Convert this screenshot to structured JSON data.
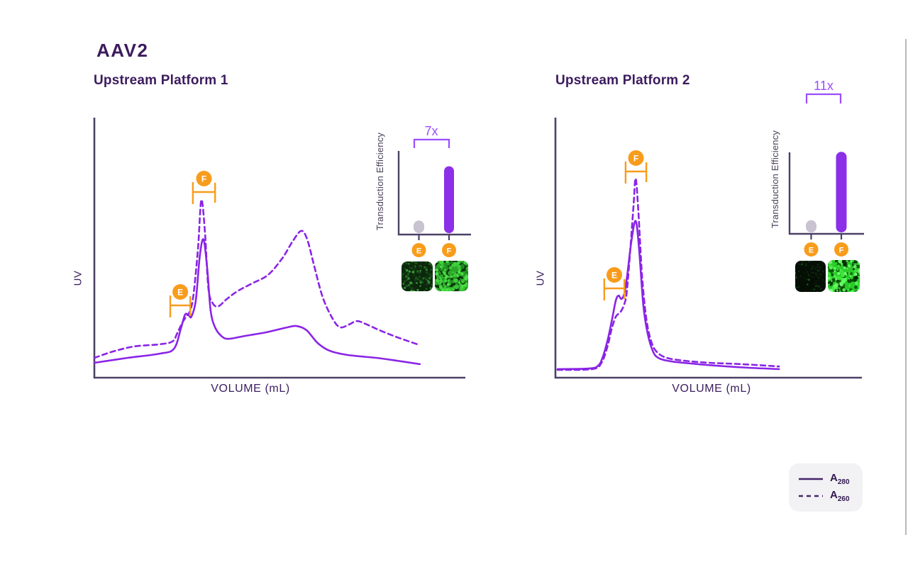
{
  "figure": {
    "title": "AAV2",
    "legend": [
      {
        "line_style": "solid",
        "symbol": "A",
        "subscript": "280"
      },
      {
        "line_style": "dashed",
        "symbol": "A",
        "subscript": "260"
      }
    ],
    "colors": {
      "accent_purple": "#8a24e6",
      "bar_purple": "#8b2fe8",
      "fold_purple": "#9b4dff",
      "marker_orange": "#f89c1c",
      "bar_gray": "#c9c2d0",
      "axis": "#4c4166",
      "heading_text": "#3c1b5e"
    }
  },
  "panels": [
    {
      "subtitle": "Upstream Platform 1",
      "xlabel": "VOLUME (mL)",
      "ylabel": "UV",
      "inset": {
        "ylabel": "Transduction Efficiency",
        "fold_change": "7x",
        "bars": [
          {
            "label": "E",
            "height_frac": 0.15,
            "color": "#c9c2d0"
          },
          {
            "label": "F",
            "height_frac": 0.8,
            "color": "#8b2fe8"
          }
        ]
      },
      "micrographs": [
        {
          "label": "E",
          "appearance": "sparse_dim_green"
        },
        {
          "label": "F",
          "appearance": "dense_bright_green"
        }
      ]
    },
    {
      "subtitle": "Upstream Platform 2",
      "xlabel": "VOLUME (mL)",
      "ylabel": "UV",
      "inset": {
        "ylabel": "Transduction Efficiency",
        "fold_change": "11x",
        "bars": [
          {
            "label": "E",
            "height_frac": 0.15,
            "color": "#c9c2d0"
          },
          {
            "label": "F",
            "height_frac": 0.99,
            "color": "#8b2fe8"
          }
        ]
      },
      "micrographs": [
        {
          "label": "E",
          "appearance": "very_sparse_dark"
        },
        {
          "label": "F",
          "appearance": "saturated_bright"
        }
      ]
    }
  ],
  "chart_data": [
    {
      "type": "line",
      "title": "Upstream Platform 1",
      "xlabel": "VOLUME (mL)",
      "ylabel": "UV",
      "axis_numeric_labels": false,
      "note": "qualitative chromatogram, x and y normalized 0-1",
      "series": [
        {
          "name": "A280",
          "style": "solid",
          "points": [
            [
              0.0,
              0.057
            ],
            [
              0.09,
              0.076
            ],
            [
              0.176,
              0.092
            ],
            [
              0.215,
              0.111
            ],
            [
              0.234,
              0.19
            ],
            [
              0.245,
              0.242
            ],
            [
              0.255,
              0.239
            ],
            [
              0.262,
              0.234
            ],
            [
              0.274,
              0.296
            ],
            [
              0.285,
              0.47
            ],
            [
              0.295,
              0.53
            ],
            [
              0.305,
              0.416
            ],
            [
              0.314,
              0.258
            ],
            [
              0.326,
              0.193
            ],
            [
              0.343,
              0.16
            ],
            [
              0.362,
              0.149
            ],
            [
              0.406,
              0.16
            ],
            [
              0.464,
              0.174
            ],
            [
              0.521,
              0.193
            ],
            [
              0.546,
              0.198
            ],
            [
              0.573,
              0.182
            ],
            [
              0.603,
              0.133
            ],
            [
              0.636,
              0.103
            ],
            [
              0.684,
              0.087
            ],
            [
              0.761,
              0.076
            ],
            [
              0.818,
              0.065
            ],
            [
              0.879,
              0.052
            ]
          ]
        },
        {
          "name": "A260",
          "style": "dashed",
          "points": [
            [
              0.0,
              0.076
            ],
            [
              0.052,
              0.101
            ],
            [
              0.109,
              0.12
            ],
            [
              0.176,
              0.128
            ],
            [
              0.211,
              0.139
            ],
            [
              0.224,
              0.171
            ],
            [
              0.238,
              0.212
            ],
            [
              0.249,
              0.236
            ],
            [
              0.259,
              0.258
            ],
            [
              0.268,
              0.321
            ],
            [
              0.28,
              0.497
            ],
            [
              0.289,
              0.682
            ],
            [
              0.299,
              0.552
            ],
            [
              0.308,
              0.342
            ],
            [
              0.32,
              0.285
            ],
            [
              0.335,
              0.274
            ],
            [
              0.358,
              0.302
            ],
            [
              0.387,
              0.332
            ],
            [
              0.425,
              0.361
            ],
            [
              0.469,
              0.394
            ],
            [
              0.508,
              0.459
            ],
            [
              0.536,
              0.524
            ],
            [
              0.559,
              0.563
            ],
            [
              0.575,
              0.53
            ],
            [
              0.592,
              0.438
            ],
            [
              0.617,
              0.307
            ],
            [
              0.646,
              0.22
            ],
            [
              0.665,
              0.193
            ],
            [
              0.688,
              0.204
            ],
            [
              0.709,
              0.217
            ],
            [
              0.736,
              0.204
            ],
            [
              0.77,
              0.182
            ],
            [
              0.818,
              0.155
            ],
            [
              0.879,
              0.125
            ]
          ]
        }
      ],
      "annotations": [
        {
          "label": "E",
          "x_range": [
            0.205,
            0.259
          ]
        },
        {
          "label": "F",
          "x_range": [
            0.266,
            0.326
          ]
        }
      ]
    },
    {
      "type": "line",
      "title": "Upstream Platform 2",
      "xlabel": "VOLUME (mL)",
      "ylabel": "UV",
      "axis_numeric_labels": false,
      "note": "qualitative chromatogram, x and y normalized 0-1",
      "series": [
        {
          "name": "A280",
          "style": "solid",
          "points": [
            [
              0.007,
              0.033
            ],
            [
              0.109,
              0.035
            ],
            [
              0.14,
              0.046
            ],
            [
              0.156,
              0.082
            ],
            [
              0.172,
              0.149
            ],
            [
              0.186,
              0.226
            ],
            [
              0.198,
              0.296
            ],
            [
              0.207,
              0.315
            ],
            [
              0.216,
              0.302
            ],
            [
              0.226,
              0.323
            ],
            [
              0.235,
              0.389
            ],
            [
              0.249,
              0.524
            ],
            [
              0.263,
              0.601
            ],
            [
              0.274,
              0.497
            ],
            [
              0.288,
              0.28
            ],
            [
              0.302,
              0.171
            ],
            [
              0.319,
              0.103
            ],
            [
              0.337,
              0.076
            ],
            [
              0.377,
              0.063
            ],
            [
              0.447,
              0.054
            ],
            [
              0.528,
              0.046
            ],
            [
              0.633,
              0.038
            ],
            [
              0.733,
              0.033
            ]
          ]
        },
        {
          "name": "A260",
          "style": "dashed",
          "points": [
            [
              0.007,
              0.03
            ],
            [
              0.121,
              0.033
            ],
            [
              0.151,
              0.057
            ],
            [
              0.17,
              0.117
            ],
            [
              0.184,
              0.185
            ],
            [
              0.198,
              0.234
            ],
            [
              0.212,
              0.25
            ],
            [
              0.223,
              0.274
            ],
            [
              0.233,
              0.321
            ],
            [
              0.244,
              0.47
            ],
            [
              0.256,
              0.66
            ],
            [
              0.263,
              0.764
            ],
            [
              0.272,
              0.633
            ],
            [
              0.284,
              0.389
            ],
            [
              0.298,
              0.226
            ],
            [
              0.314,
              0.139
            ],
            [
              0.333,
              0.098
            ],
            [
              0.365,
              0.076
            ],
            [
              0.423,
              0.065
            ],
            [
              0.505,
              0.057
            ],
            [
              0.609,
              0.052
            ],
            [
              0.733,
              0.043
            ]
          ]
        }
      ],
      "annotations": [
        {
          "label": "E",
          "x_range": [
            0.16,
            0.226
          ]
        },
        {
          "label": "F",
          "x_range": [
            0.23,
            0.298
          ]
        }
      ]
    },
    {
      "type": "bar",
      "title": "Transduction Efficiency - Upstream Platform 1",
      "categories": [
        "E",
        "F"
      ],
      "values_relative": [
        1,
        7
      ],
      "fold_change": "7x",
      "ylabel": "Transduction Efficiency"
    },
    {
      "type": "bar",
      "title": "Transduction Efficiency - Upstream Platform 2",
      "categories": [
        "E",
        "F"
      ],
      "values_relative": [
        1,
        11
      ],
      "fold_change": "11x",
      "ylabel": "Transduction Efficiency"
    }
  ]
}
